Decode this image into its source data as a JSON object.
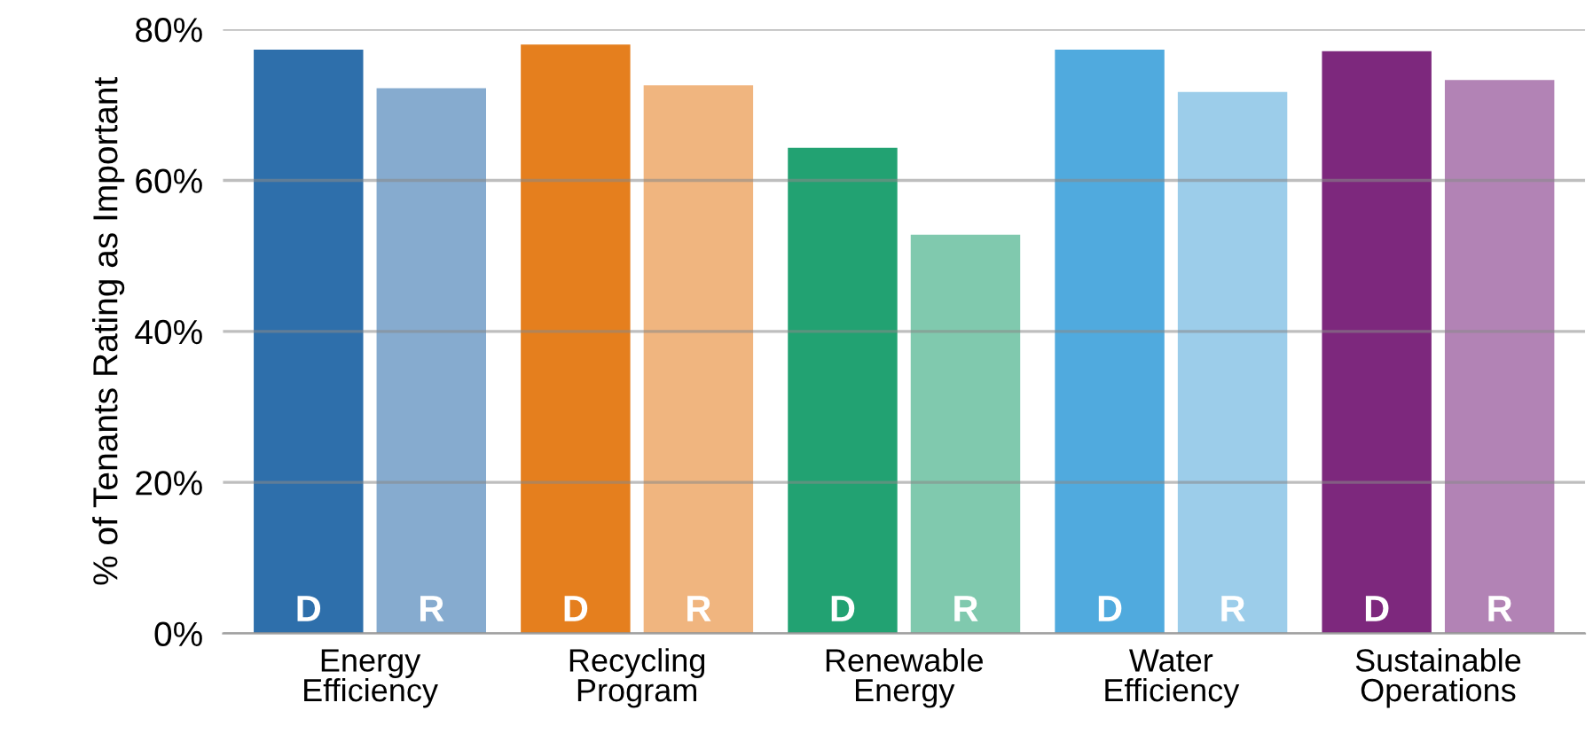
{
  "chart_data": {
    "type": "bar",
    "ylabel": "% of Tenants Rating as Important",
    "categories": [
      "Energy\nEfficiency",
      "Recycling\nProgram",
      "Renewable\nEnergy",
      "Water\nEfficiency",
      "Sustainable\nOperations"
    ],
    "series": [
      {
        "name": "D",
        "colors": [
          "#2e6fab",
          "#e57f1e",
          "#22a272",
          "#50aade",
          "#7d287d"
        ],
        "values": [
          77.3,
          78.0,
          64.3,
          77.3,
          77.1
        ]
      },
      {
        "name": "R",
        "colors": [
          "#86abcf",
          "#f0b57f",
          "#80c9ae",
          "#9ccdea",
          "#b283b5"
        ],
        "values": [
          72.2,
          72.6,
          52.8,
          71.7,
          73.3
        ]
      }
    ],
    "ylim": [
      0,
      80
    ],
    "yticks": [
      {
        "value": 0,
        "label": "0%"
      },
      {
        "value": 20,
        "label": "20%"
      },
      {
        "value": 40,
        "label": "40%"
      },
      {
        "value": 60,
        "label": "60%"
      },
      {
        "value": 80,
        "label": "80%"
      }
    ],
    "grid": "y",
    "legend": false
  }
}
